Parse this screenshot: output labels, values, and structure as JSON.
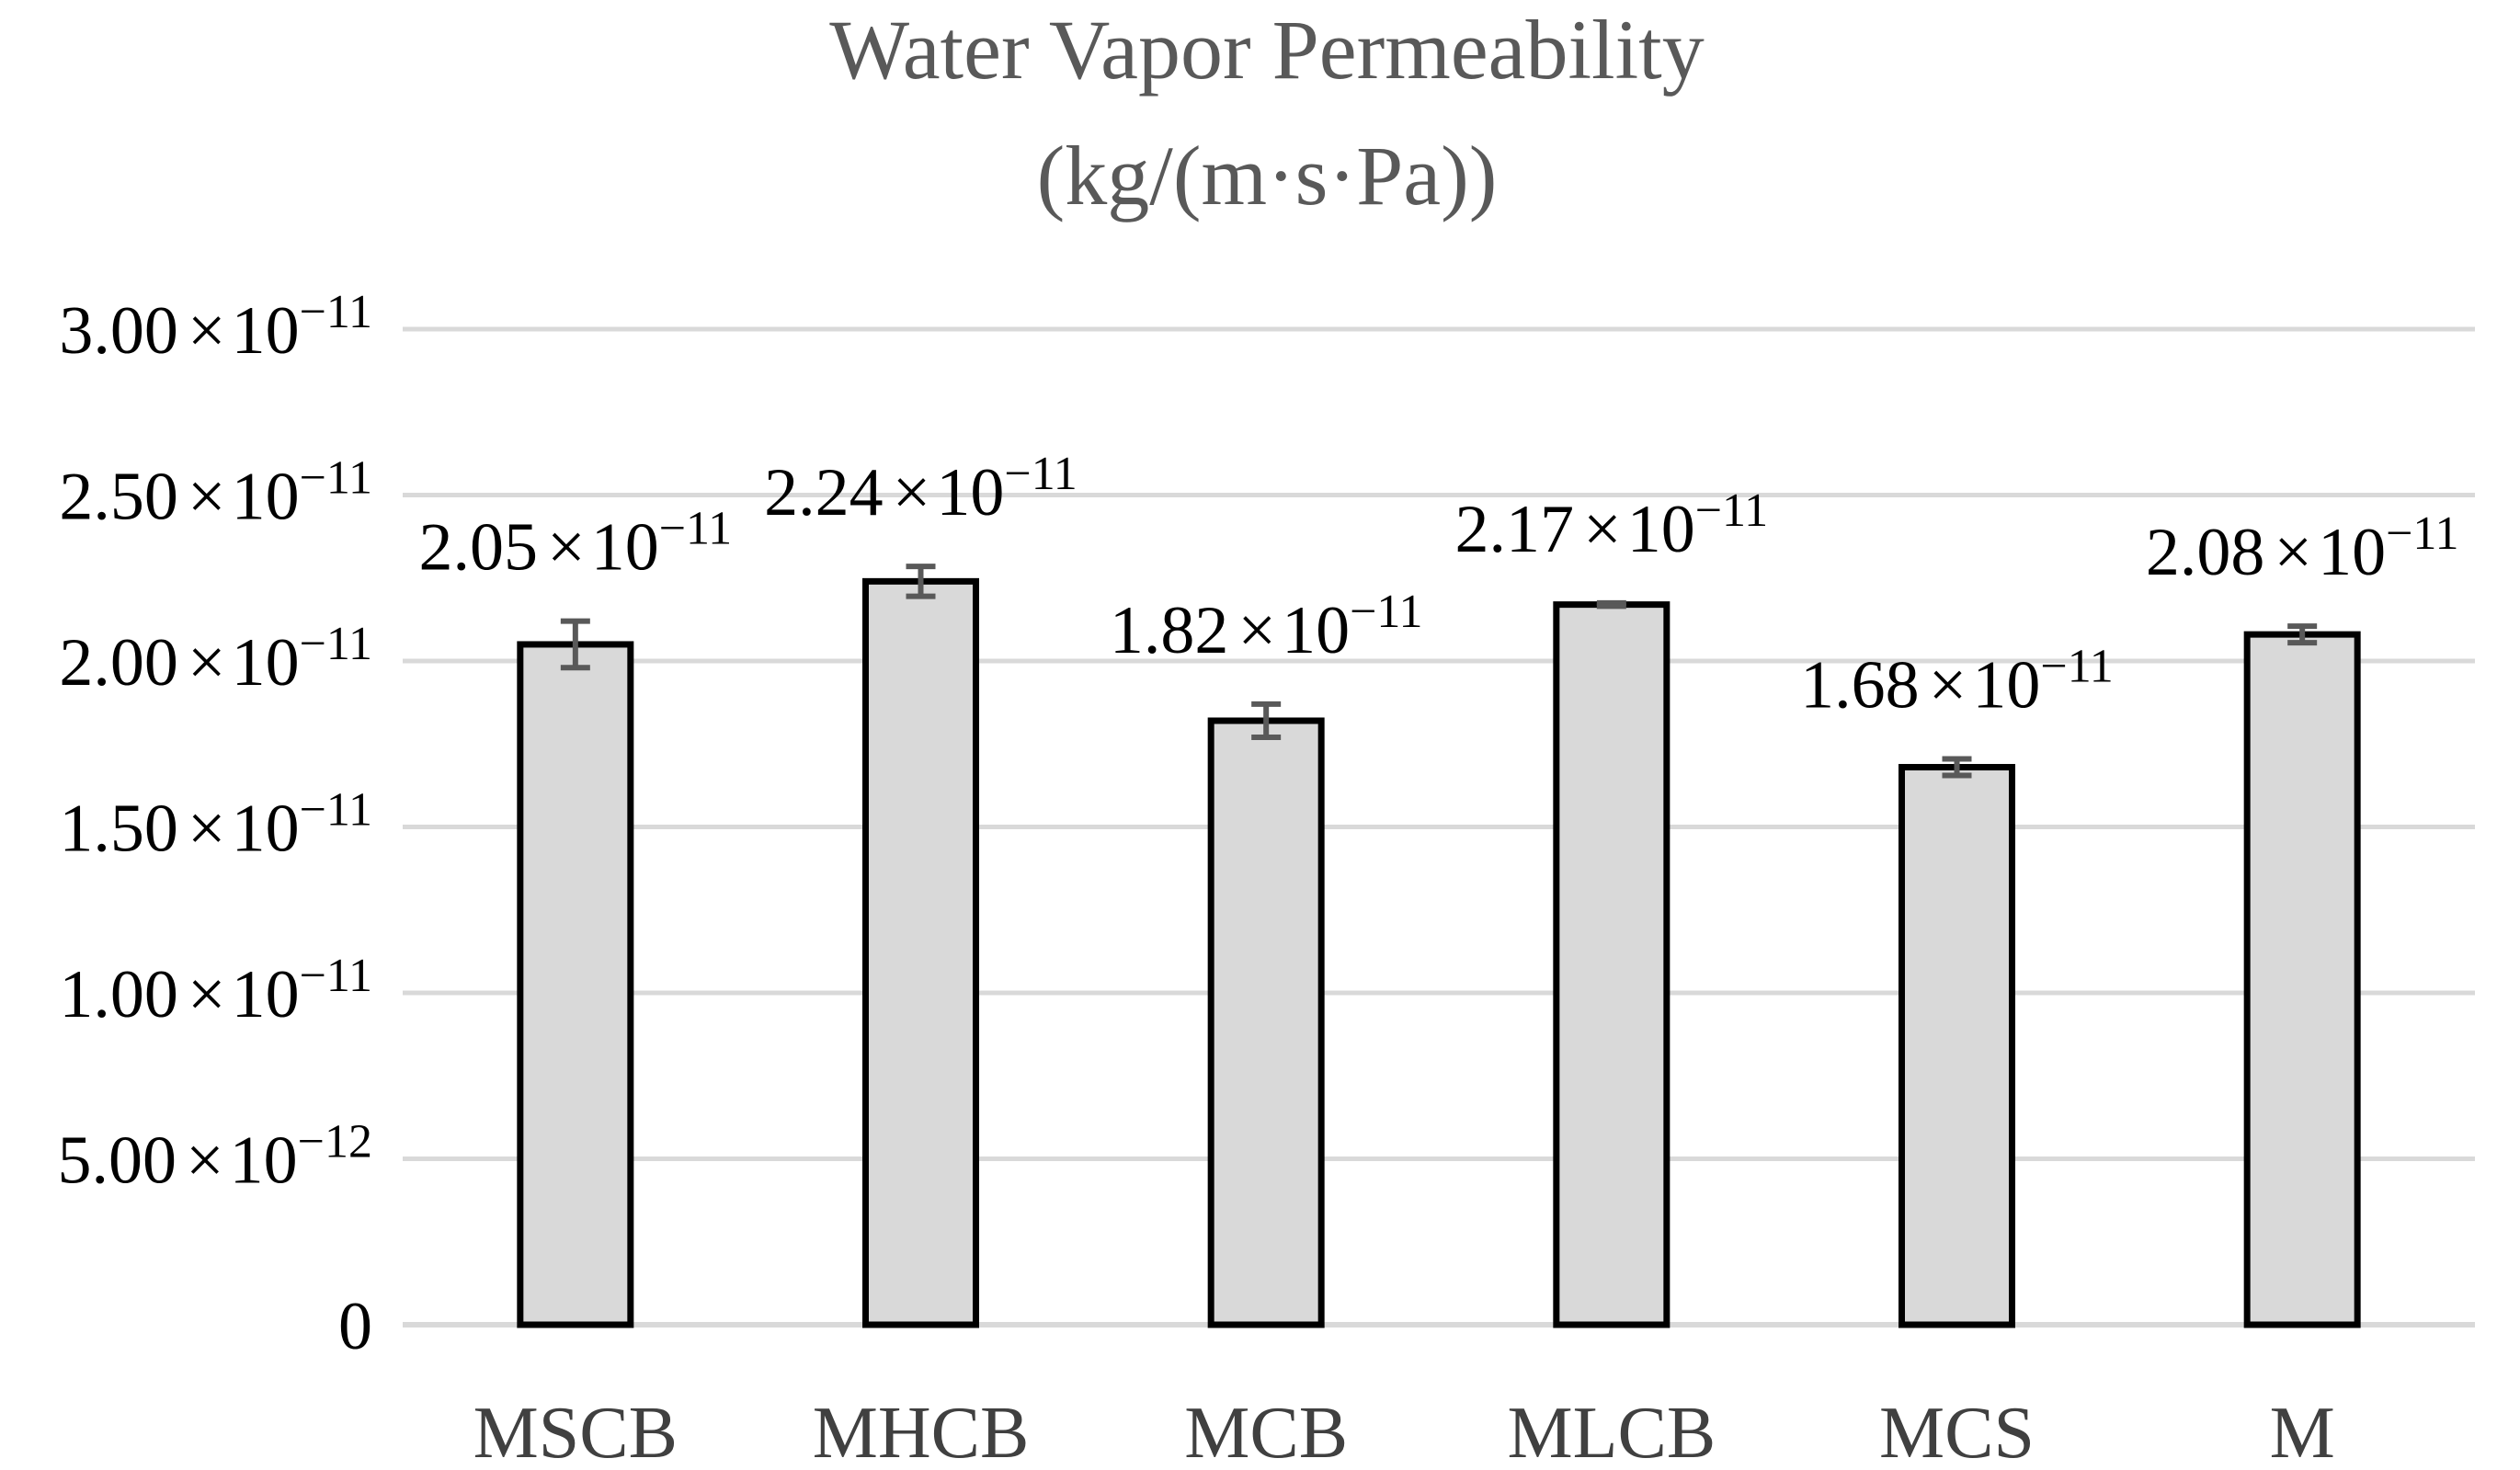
{
  "chart_data": {
    "type": "bar",
    "title_lines": [
      "Water Vapor Permeability",
      "(kg/(m·s·Pa))"
    ],
    "categories": [
      "MSCB",
      "MHCB",
      "MCB",
      "MLCB",
      "MCS",
      "M"
    ],
    "values": [
      2.05e-11,
      2.24e-11,
      1.82e-11,
      2.17e-11,
      1.68e-11,
      2.08e-11
    ],
    "errors": [
      7e-13,
      4.5e-13,
      5e-13,
      5e-14,
      2.5e-13,
      2.5e-13
    ],
    "data_labels": [
      {
        "mantissa": "2.05",
        "times": "×",
        "base": "10",
        "exp": "−11"
      },
      {
        "mantissa": "2.24",
        "times": "×",
        "base": "10",
        "exp": "−11"
      },
      {
        "mantissa": "1.82",
        "times": "×",
        "base": "10",
        "exp": "−11"
      },
      {
        "mantissa": "2.17",
        "times": "×",
        "base": "10",
        "exp": "−11"
      },
      {
        "mantissa": "1.68",
        "times": "×",
        "base": "10",
        "exp": "−11"
      },
      {
        "mantissa": "2.08",
        "times": "×",
        "base": "10",
        "exp": "−11"
      }
    ],
    "y_ticks": [
      {
        "value": 0,
        "mantissa": "0",
        "times": "",
        "base": "",
        "exp": ""
      },
      {
        "value": 5e-12,
        "mantissa": "5.00",
        "times": "×",
        "base": "10",
        "exp": "−12"
      },
      {
        "value": 1e-11,
        "mantissa": "1.00",
        "times": "×",
        "base": "10",
        "exp": "−11"
      },
      {
        "value": 1.5e-11,
        "mantissa": "1.50",
        "times": "×",
        "base": "10",
        "exp": "−11"
      },
      {
        "value": 2e-11,
        "mantissa": "2.00",
        "times": "×",
        "base": "10",
        "exp": "−11"
      },
      {
        "value": 2.5e-11,
        "mantissa": "2.50",
        "times": "×",
        "base": "10",
        "exp": "−11"
      },
      {
        "value": 3e-11,
        "mantissa": "3.00",
        "times": "×",
        "base": "10",
        "exp": "−11"
      }
    ],
    "ylim": [
      0,
      3e-11
    ],
    "xlabel": "",
    "ylabel": "",
    "grid": true,
    "legend": "none",
    "colors": {
      "bar_fill": "#d9d9d9",
      "bar_stroke": "#000000",
      "error_bar": "#595959",
      "grid": "#d9d9d9",
      "title": "#595959",
      "category_text": "#404040"
    }
  }
}
